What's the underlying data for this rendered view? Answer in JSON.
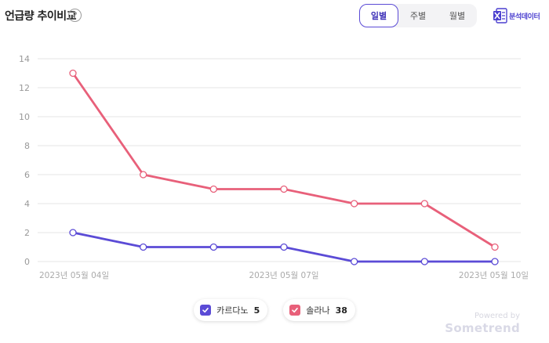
{
  "header": {
    "title": "언급량 추이비교",
    "help_symbol": "?",
    "tabs": [
      {
        "label": "일별",
        "active": true
      },
      {
        "label": "주별",
        "active": false
      },
      {
        "label": "월별",
        "active": false
      }
    ],
    "analysis_label": "분석데이터",
    "analysis_icon": "excel-x-icon"
  },
  "legend": {
    "items": [
      {
        "name": "카르다노",
        "value": "5",
        "color": "#5b4bd6"
      },
      {
        "name": "솔라나",
        "value": "38",
        "color": "#e8607a"
      }
    ]
  },
  "footer": {
    "powered_by": "Powered by",
    "brand": "Sometrend"
  },
  "chart_data": {
    "type": "line",
    "x": [
      "2023년 05월 04일",
      "2023년 05월 05일",
      "2023년 05월 06일",
      "2023년 05월 07일",
      "2023년 05월 08일",
      "2023년 05월 09일",
      "2023년 05월 10일"
    ],
    "x_tick_labels": [
      "2023년 05월 04일",
      "2023년 05월 07일",
      "2023년 05월 10일"
    ],
    "y_ticks": [
      "0",
      "2",
      "4",
      "6",
      "8",
      "10",
      "12",
      "14"
    ],
    "ylim": [
      0,
      14
    ],
    "grid": true,
    "series": [
      {
        "name": "카르다노",
        "color": "#5b4bd6",
        "values": [
          2,
          1,
          1,
          1,
          0,
          0,
          0
        ]
      },
      {
        "name": "솔라나",
        "color": "#e8607a",
        "values": [
          13,
          6,
          5,
          5,
          4,
          4,
          1
        ]
      }
    ]
  }
}
